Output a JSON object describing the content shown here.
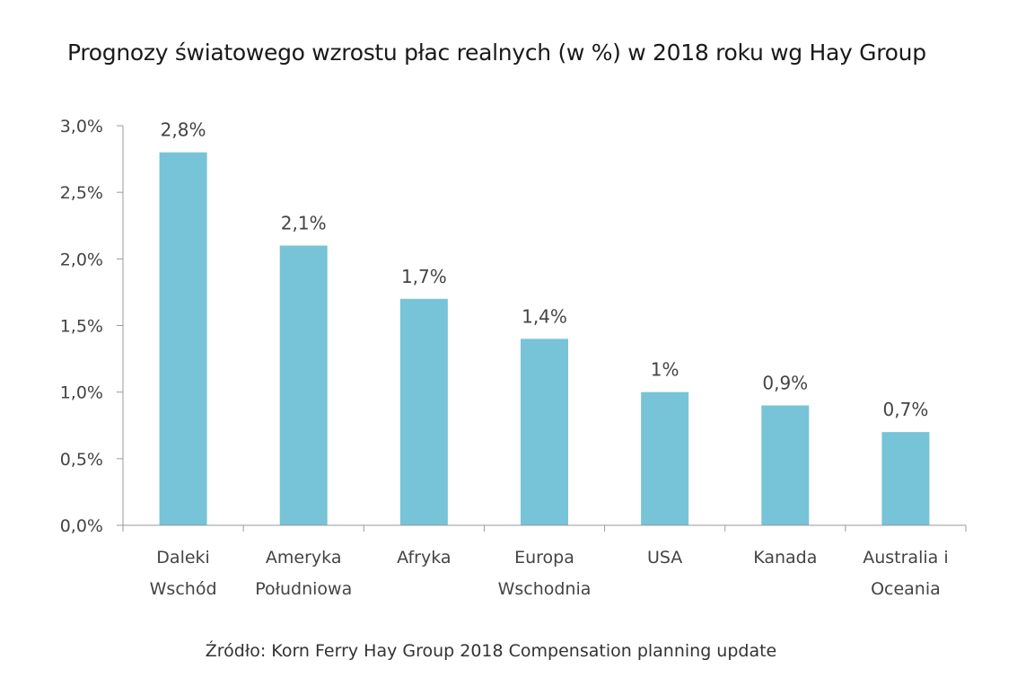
{
  "chart_data": {
    "type": "bar",
    "title": "Prognozy światowego wzrostu płac realnych (w %) w 2018 roku wg Hay Group",
    "categories": [
      [
        "Daleki",
        "Wschód"
      ],
      [
        "Ameryka",
        "Południowa"
      ],
      [
        "Afryka"
      ],
      [
        "Europa",
        "Wschodnia"
      ],
      [
        "USA"
      ],
      [
        "Kanada"
      ],
      [
        "Australia i",
        "Oceania"
      ]
    ],
    "values": [
      2.8,
      2.1,
      1.7,
      1.4,
      1.0,
      0.9,
      0.7
    ],
    "data_labels": [
      "2,8%",
      "2,1%",
      "1,7%",
      "1,4%",
      "1%",
      "0,9%",
      "0,7%"
    ],
    "y_ticks": [
      "0,0%",
      "0,5%",
      "1,0%",
      "1,5%",
      "2,0%",
      "2,5%",
      "3,0%"
    ],
    "ylim": [
      0,
      3.0
    ],
    "xlabel": "",
    "ylabel": "",
    "grid": false,
    "bar_color": "#77c3d8",
    "axis_color": "#9a9a9a"
  },
  "source": "Źródło: Korn Ferry Hay Group 2018 Compensation planning update"
}
